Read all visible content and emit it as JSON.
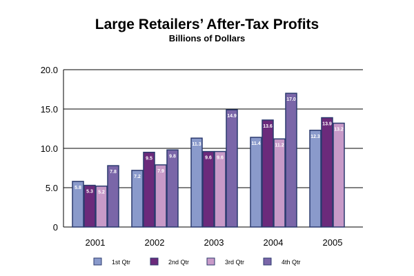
{
  "chart_data": {
    "type": "bar",
    "title": "Large Retailers’ After-Tax Profits",
    "subtitle": "Billions of Dollars",
    "xlabel": "",
    "ylabel": "",
    "ylim": [
      0,
      20
    ],
    "yticks": [
      "0",
      "5.0",
      "10.0",
      "15.0",
      "20.0"
    ],
    "ytick_values": [
      0,
      5,
      10,
      15,
      20
    ],
    "categories": [
      "2001",
      "2002",
      "2003",
      "2004",
      "2005"
    ],
    "series": [
      {
        "name": "1st Qtr",
        "color": "#8a9acb",
        "values": [
          5.8,
          7.2,
          11.3,
          11.4,
          12.3
        ],
        "labels": [
          "5.8",
          "7.2",
          "11.3",
          "11.4",
          "12.3"
        ]
      },
      {
        "name": "2nd Qtr",
        "color": "#6b2a7b",
        "values": [
          5.3,
          9.5,
          9.6,
          13.6,
          13.9
        ],
        "labels": [
          "5.3",
          "9.5",
          "9.6",
          "13.6",
          "13.9"
        ]
      },
      {
        "name": "3rd Qtr",
        "color": "#c89ac8",
        "values": [
          5.2,
          7.9,
          9.6,
          11.2,
          13.2
        ],
        "labels": [
          "5.2",
          "7.9",
          "9.6",
          "11.2",
          "13.2"
        ]
      },
      {
        "name": "4th Qtr",
        "color": "#7a66a8",
        "values": [
          7.8,
          9.8,
          14.9,
          17.0,
          null
        ],
        "labels": [
          "7.8",
          "9.8",
          "14.9",
          "17.0",
          ""
        ]
      }
    ],
    "grid": true,
    "legend": "bottom"
  }
}
